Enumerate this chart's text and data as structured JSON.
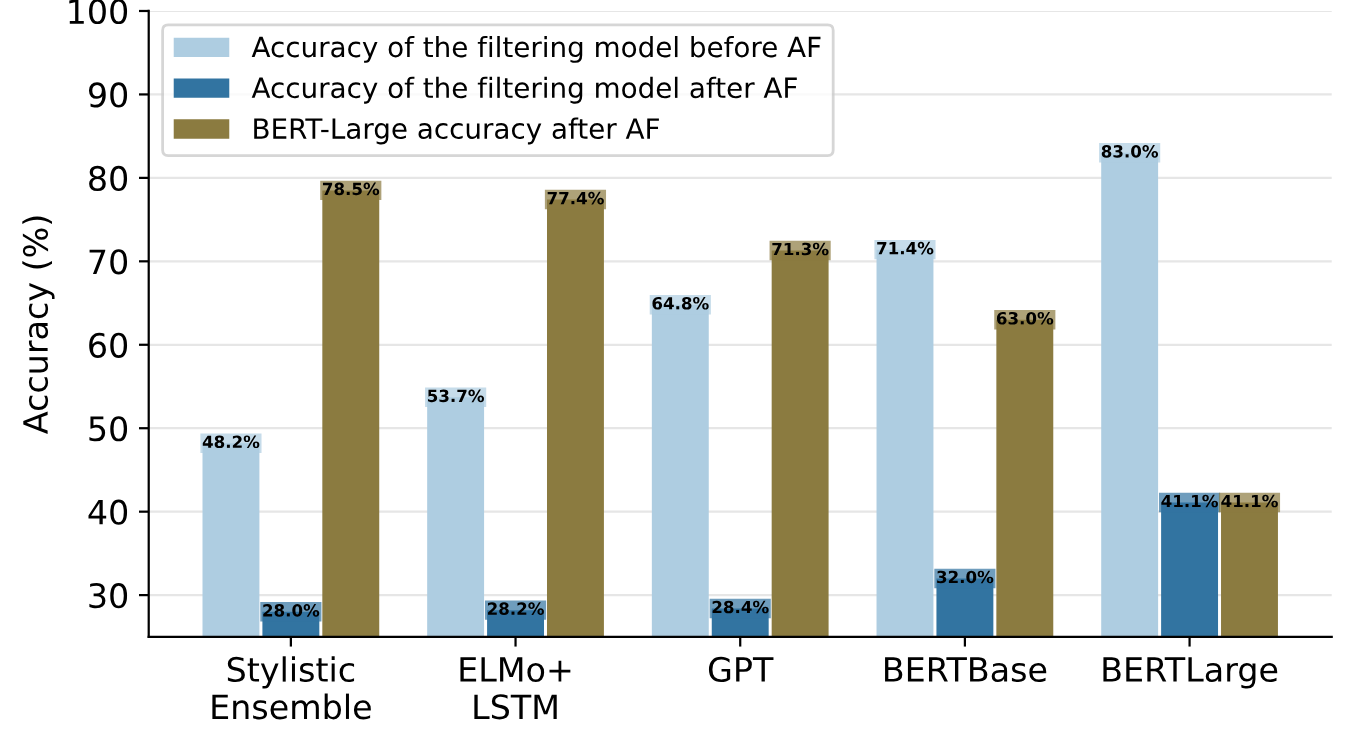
{
  "chart_data": {
    "type": "bar",
    "ylabel": "Accuracy (%)",
    "categories": [
      "Stylistic\nEnsemble",
      "ELMo+\nLSTM",
      "GPT",
      "BERTBase",
      "BERTLarge"
    ],
    "series": [
      {
        "name": "Accuracy of the filtering model before AF",
        "color": "#aecde1",
        "values": [
          48.2,
          53.7,
          64.8,
          71.4,
          83.0
        ],
        "value_labels": [
          "48.2%",
          "53.7%",
          "64.8%",
          "71.4%",
          "83.0%"
        ]
      },
      {
        "name": "Accuracy of the filtering model after AF",
        "color": "#3274a1",
        "values": [
          28.0,
          28.2,
          28.4,
          32.0,
          41.1
        ],
        "value_labels": [
          "28.0%",
          "28.2%",
          "28.4%",
          "32.0%",
          "41.1%"
        ]
      },
      {
        "name": "BERT-Large accuracy after AF",
        "color": "#8b7b40",
        "values": [
          78.5,
          77.4,
          71.3,
          63.0,
          41.1
        ],
        "value_labels": [
          "78.5%",
          "77.4%",
          "71.3%",
          "63.0%",
          "41.1%"
        ]
      }
    ],
    "ylim": [
      25,
      100
    ],
    "yticks": [
      30,
      40,
      50,
      60,
      70,
      80,
      90,
      100
    ],
    "grid": "y",
    "legend": "top left"
  }
}
